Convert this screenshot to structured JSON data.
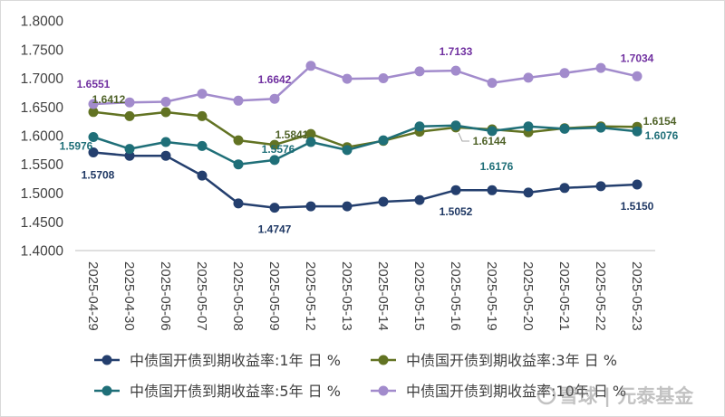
{
  "chart_data": {
    "type": "line",
    "title": "",
    "xlabel": "",
    "ylabel": "",
    "grid": false,
    "legend": "bottom",
    "ylim": [
      1.4,
      1.8
    ],
    "yticks": [
      1.4,
      1.45,
      1.5,
      1.55,
      1.6,
      1.65,
      1.7,
      1.75,
      1.8
    ],
    "ytick_labels": [
      "1.4000",
      "1.4500",
      "1.5000",
      "1.5500",
      "1.6000",
      "1.6500",
      "1.7000",
      "1.7500",
      "1.8000"
    ],
    "categories": [
      "2025-04-29",
      "2025-04-30",
      "2025-05-06",
      "2025-05-07",
      "2025-05-08",
      "2025-05-09",
      "2025-05-12",
      "2025-05-13",
      "2025-05-14",
      "2025-05-15",
      "2025-05-16",
      "2025-05-19",
      "2025-05-20",
      "2025-05-21",
      "2025-05-22",
      "2025-05-23"
    ],
    "series": [
      {
        "name": "中债国开债到期收益率:1年 日 %",
        "color": "#243F6E",
        "label_color": "#1F3864",
        "values": [
          1.5708,
          1.565,
          1.565,
          1.5305,
          1.482,
          1.4747,
          1.477,
          1.477,
          1.485,
          1.488,
          1.5052,
          1.505,
          1.501,
          1.509,
          1.512,
          1.515
        ]
      },
      {
        "name": "中债国开债到期收益率:3年 日 %",
        "color": "#627323",
        "label_color": "#4F6228",
        "values": [
          1.6412,
          1.634,
          1.641,
          1.634,
          1.592,
          1.5841,
          1.603,
          1.58,
          1.591,
          1.607,
          1.6144,
          1.611,
          1.606,
          1.613,
          1.616,
          1.6154
        ]
      },
      {
        "name": "中债国开债到期收益率:5年 日 %",
        "color": "#1F6F78",
        "label_color": "#1F6F78",
        "values": [
          1.5976,
          1.577,
          1.589,
          1.582,
          1.55,
          1.5576,
          1.589,
          1.575,
          1.592,
          1.616,
          1.6176,
          1.608,
          1.616,
          1.612,
          1.614,
          1.6076
        ]
      },
      {
        "name": "中债国开债到期收益率:10年 日 %",
        "color": "#A28BCC",
        "label_color": "#7030A0",
        "values": [
          1.6551,
          1.658,
          1.659,
          1.673,
          1.661,
          1.6642,
          1.7215,
          1.699,
          1.7,
          1.712,
          1.7133,
          1.692,
          1.701,
          1.709,
          1.718,
          1.7034
        ]
      }
    ],
    "data_labels": [
      {
        "series": 3,
        "index": 0,
        "text": "1.6551"
      },
      {
        "series": 1,
        "index": 0,
        "text": "1.6412"
      },
      {
        "series": 2,
        "index": 0,
        "text": "1.5976"
      },
      {
        "series": 0,
        "index": 0,
        "text": "1.5708"
      },
      {
        "series": 0,
        "index": 5,
        "text": "1.4747"
      },
      {
        "series": 1,
        "index": 5,
        "text": "1.5841"
      },
      {
        "series": 2,
        "index": 5,
        "text": "1.5576"
      },
      {
        "series": 3,
        "index": 5,
        "text": "1.6642"
      },
      {
        "series": 3,
        "index": 10,
        "text": "1.7133"
      },
      {
        "series": 1,
        "index": 10,
        "text": "1.6144"
      },
      {
        "series": 2,
        "index": 10,
        "text": "1.6176"
      },
      {
        "series": 0,
        "index": 10,
        "text": "1.5052"
      },
      {
        "series": 3,
        "index": 15,
        "text": "1.7034"
      },
      {
        "series": 1,
        "index": 15,
        "text": "1.6154"
      },
      {
        "series": 2,
        "index": 15,
        "text": "1.6076"
      },
      {
        "series": 0,
        "index": 15,
        "text": "1.5150"
      }
    ]
  },
  "watermark": "雪球 | 元泰基金"
}
